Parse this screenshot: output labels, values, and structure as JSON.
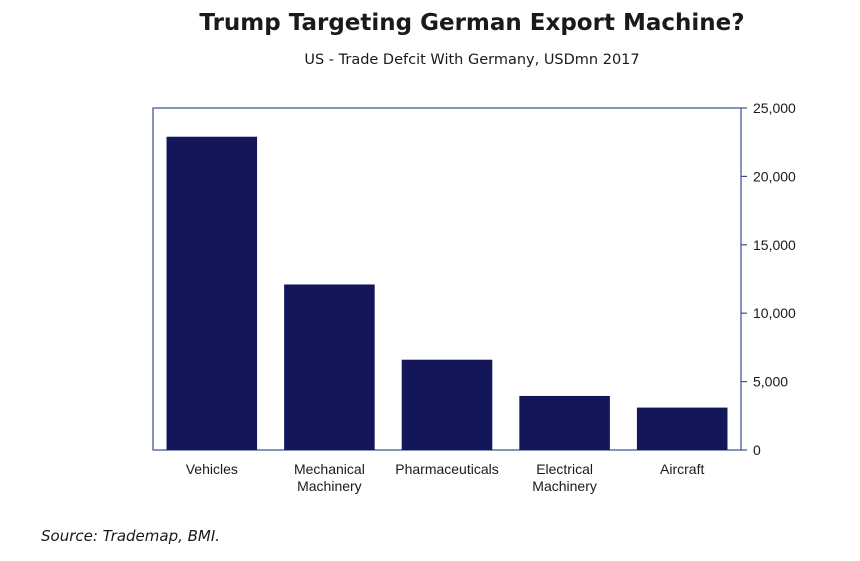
{
  "header": {
    "title": "Trump Targeting German Export Machine?",
    "subtitle": "US - Trade Defcit With Germany, USDmn 2017"
  },
  "source": "Source: Trademap, BMI.",
  "colors": {
    "bar": "#14165a",
    "frame": "#3a4e8c",
    "text": "#1a1a1a"
  },
  "chart_data": {
    "type": "bar",
    "title": "Trump Targeting German Export Machine?",
    "subtitle": "US - Trade Defcit With Germany, USDmn 2017",
    "categories": [
      [
        "Vehicles"
      ],
      [
        "Mechanical",
        "Machinery"
      ],
      [
        "Pharmaceuticals"
      ],
      [
        "Electrical",
        "Machinery"
      ],
      [
        "Aircraft"
      ]
    ],
    "values": [
      22900,
      12100,
      6600,
      3950,
      3100
    ],
    "ylim": [
      0,
      25000
    ],
    "yticks": [
      "0",
      "5,000",
      "10,000",
      "15,000",
      "20,000",
      "25,000"
    ],
    "ytick_values": [
      0,
      5000,
      10000,
      15000,
      20000,
      25000
    ],
    "yaxis_side": "right",
    "grid": false,
    "legend": "none"
  }
}
